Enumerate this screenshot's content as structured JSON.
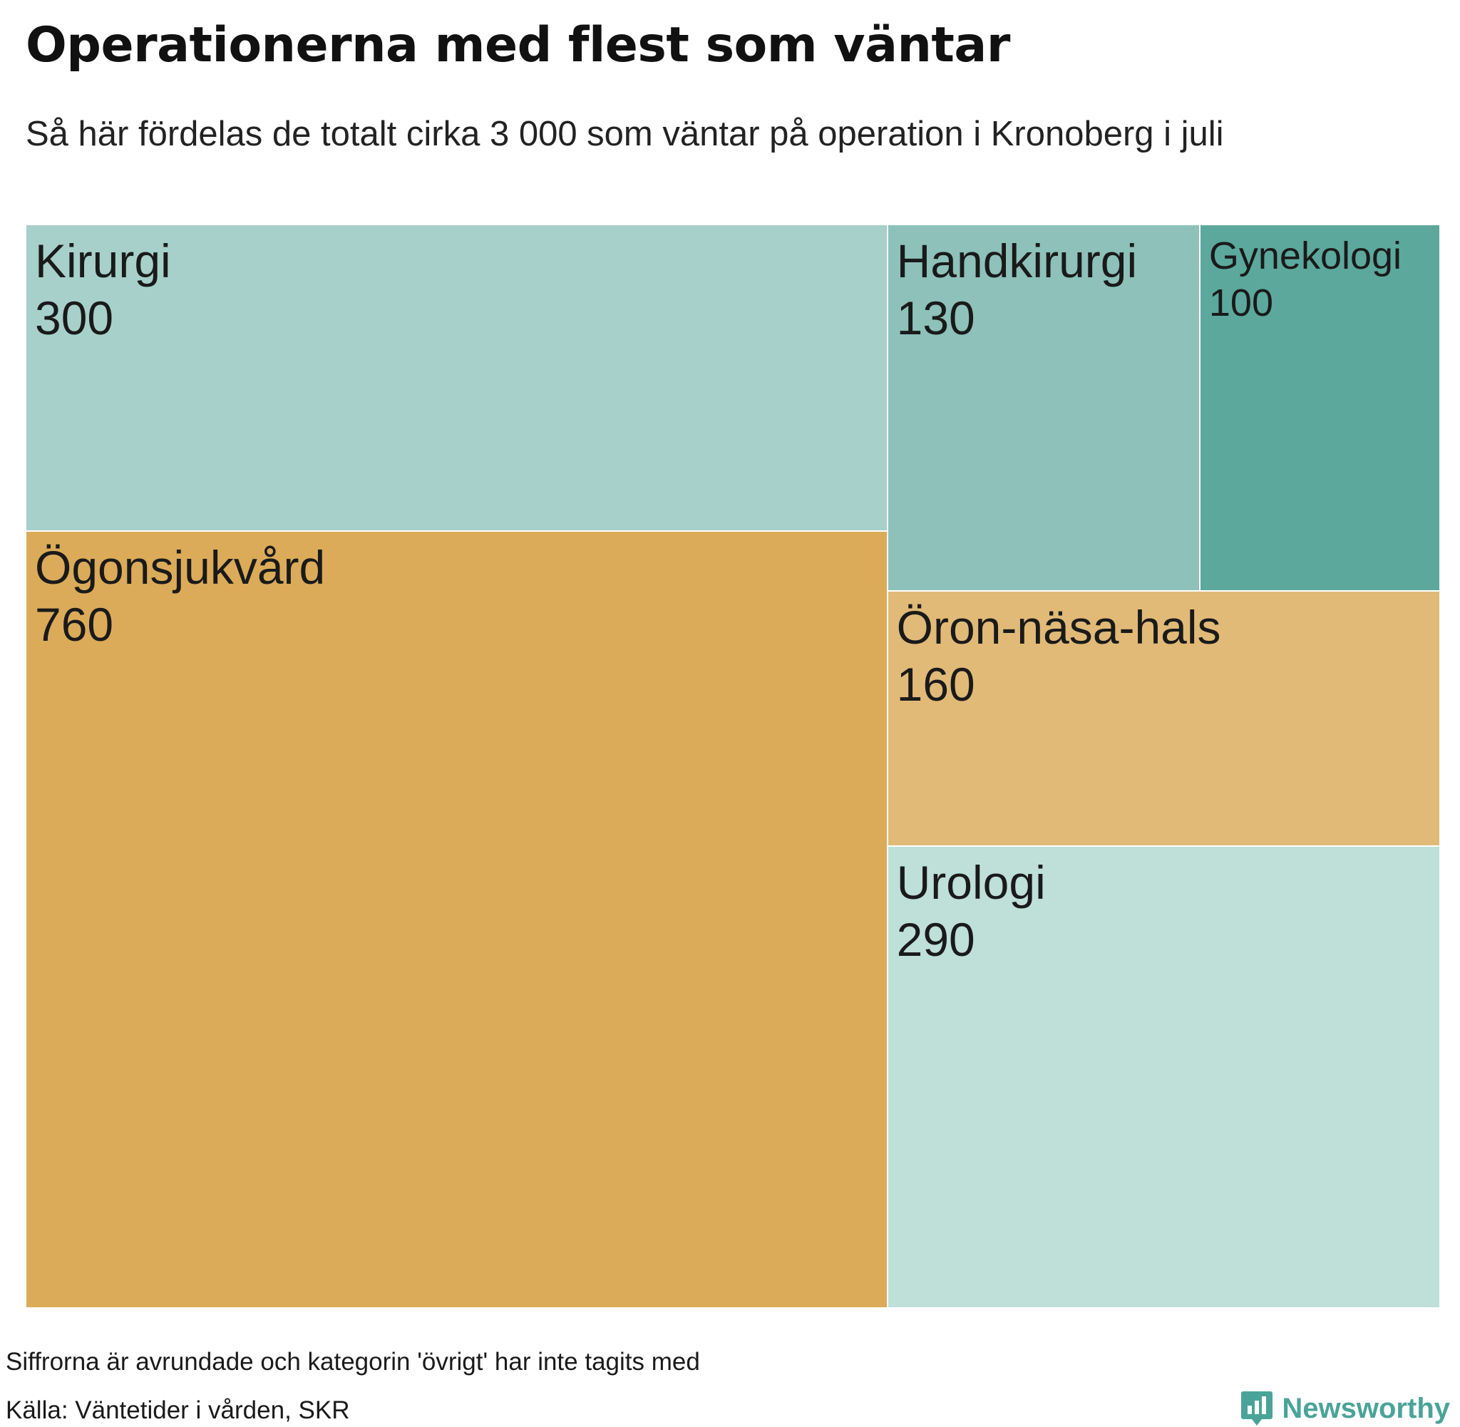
{
  "title": "Operationerna med flest som väntar",
  "subtitle": "Så här fördelas de totalt cirka 3 000 som väntar på operation i Kronoberg i juli",
  "note": "Siffrorna är avrundade och kategorin 'övrigt' har inte tagits med",
  "source": "Källa: Väntetider i vården, SKR",
  "brand": {
    "name": "Newsworthy",
    "color": "#4aa399",
    "icon": "chat-bar-chart-icon"
  },
  "chart_data": {
    "type": "treemap",
    "items": [
      {
        "name": "Kirurgi",
        "value": 300,
        "label": "300",
        "color": "#a7d0ca"
      },
      {
        "name": "Ögonsjukvård",
        "value": 760,
        "label": "760",
        "color": "#dbab5a"
      },
      {
        "name": "Handkirurgi",
        "value": 130,
        "label": "130",
        "color": "#8dc1ba"
      },
      {
        "name": "Gynekologi",
        "value": 100,
        "label": "100",
        "color": "#5ca89d"
      },
      {
        "name": "Öron-näsa-hals",
        "value": 160,
        "label": "160",
        "color": "#e1ba78"
      },
      {
        "name": "Urologi",
        "value": 290,
        "label": "290",
        "color": "#bfdfd9"
      }
    ]
  }
}
